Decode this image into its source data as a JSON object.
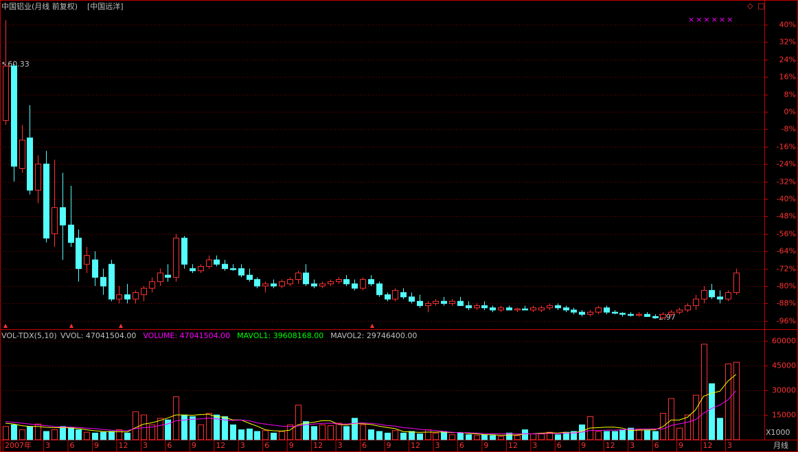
{
  "header": {
    "title": "中国铝业(月线 前复权)",
    "overlay": "[中国远洋]",
    "markers_text": "××××××",
    "corner_icons": [
      "◇",
      "□"
    ],
    "period": "月线"
  },
  "chart_data": [
    {
      "type": "candlestick",
      "up_color": "#ff3232",
      "down_color": "#54fcfc",
      "categories": [
        "2007年",
        null,
        null,
        null,
        null,
        "3",
        null,
        null,
        "6",
        null,
        null,
        "9",
        null,
        null,
        "12",
        null,
        null,
        "3",
        null,
        null,
        "6",
        null,
        null,
        "9",
        null,
        null,
        "12",
        null,
        null,
        "3",
        null,
        null,
        "6",
        null,
        null,
        "9",
        null,
        null,
        "12",
        null,
        null,
        "3",
        null,
        null,
        "6",
        null,
        null,
        "9",
        null,
        null,
        "12",
        null,
        null,
        "3",
        null,
        null,
        "6",
        null,
        null,
        "9",
        null,
        null,
        "12",
        null,
        null,
        "3",
        null,
        null,
        "6",
        null,
        null,
        "9",
        null,
        null,
        "12",
        null,
        null,
        "3",
        null,
        null,
        "6",
        null,
        null,
        "9",
        null,
        null,
        "12",
        null,
        null,
        "3",
        null
      ],
      "open": [
        -4,
        21,
        -26,
        -12,
        -36,
        -24,
        -56,
        -44,
        -52,
        -58,
        -70,
        -68,
        -76,
        -70,
        -86,
        -84,
        -86,
        -84,
        -81,
        -78,
        -75,
        -76,
        -58,
        -72,
        -73,
        -71,
        -68,
        -70,
        -72,
        -72,
        -75,
        -77,
        -80,
        -79,
        -80,
        -79,
        -77,
        -74,
        -79,
        -80,
        -79,
        -78,
        -77,
        -79,
        -81,
        -77,
        -79,
        -84,
        -86,
        -83,
        -85,
        -87,
        -89,
        -88,
        -87,
        -88,
        -87,
        -89,
        -90,
        -89,
        -90,
        -91,
        -90,
        -91,
        -90.5,
        -91,
        -91,
        -90,
        -89,
        -90,
        -91,
        -92,
        -93,
        -92,
        -90,
        -92,
        -92.5,
        -93,
        -93.5,
        -93,
        -94,
        -94.6,
        -93,
        -92,
        -91,
        -89,
        -86,
        -82,
        -85,
        -86,
        -83
      ],
      "high": [
        42,
        22,
        -6,
        3,
        -20,
        -18,
        -22,
        -28,
        -34,
        -54,
        -62,
        -64,
        -72,
        -68,
        -80,
        -79,
        -82,
        -80,
        -76,
        -72,
        -70,
        -56,
        -57,
        -70,
        -70,
        -66,
        -66,
        -68,
        -70,
        -70,
        -72,
        -76,
        -78,
        -77,
        -77,
        -76,
        -73,
        -70,
        -77,
        -78,
        -77,
        -76,
        -75,
        -77,
        -76,
        -75,
        -78,
        -83,
        -81,
        -81,
        -83,
        -84,
        -87,
        -86,
        -85,
        -86,
        -85,
        -87,
        -88,
        -87,
        -89,
        -89,
        -89,
        -90,
        -89,
        -89,
        -89,
        -88,
        -88,
        -89,
        -90,
        -91,
        -91,
        -89,
        -89,
        -91,
        -92,
        -92,
        -92,
        -92,
        -93,
        -92,
        -91,
        -90,
        -88,
        -84,
        -80,
        -79,
        -82,
        -82,
        -72
      ],
      "low": [
        -6,
        -32,
        -28,
        -38,
        -42,
        -60,
        -62,
        -68,
        -62,
        -78,
        -74,
        -80,
        -84,
        -87,
        -88,
        -88,
        -88,
        -87,
        -83,
        -80,
        -78,
        -78,
        -72,
        -74,
        -74,
        -72,
        -71,
        -73,
        -73,
        -76,
        -78,
        -81,
        -83,
        -81,
        -81,
        -80,
        -79,
        -80,
        -81,
        -81,
        -80,
        -79,
        -80,
        -82,
        -82,
        -80,
        -85,
        -87,
        -87,
        -86,
        -88,
        -90,
        -92,
        -89,
        -89,
        -89,
        -89,
        -91,
        -91,
        -91,
        -92,
        -92,
        -91,
        -92,
        -91,
        -92,
        -92,
        -91,
        -91,
        -92,
        -93,
        -94,
        -94,
        -93,
        -93,
        -93,
        -94,
        -94,
        -94,
        -94,
        -95,
        -95,
        -94,
        -93,
        -92,
        -91,
        -88,
        -86,
        -88,
        -87,
        -84
      ],
      "close": [
        21,
        -25,
        -13,
        -36,
        -24,
        -58,
        -44,
        -52,
        -60,
        -72,
        -66,
        -76,
        -80,
        -86,
        -84,
        -86,
        -83,
        -81,
        -78,
        -74,
        -76,
        -58,
        -70,
        -73,
        -71,
        -68,
        -70,
        -72,
        -72.5,
        -75,
        -77,
        -80,
        -79,
        -80,
        -78,
        -77,
        -74,
        -79,
        -80,
        -79,
        -78,
        -77,
        -79,
        -81,
        -77,
        -79,
        -84,
        -86,
        -82,
        -85,
        -87,
        -89,
        -88,
        -87,
        -88,
        -87,
        -89,
        -90,
        -89,
        -90,
        -91,
        -90,
        -91,
        -90.5,
        -91,
        -90,
        -90,
        -89,
        -90,
        -91,
        -92,
        -93,
        -92,
        -90,
        -92,
        -92.5,
        -93,
        -93.5,
        -93,
        -94,
        -94.6,
        -93,
        -92,
        -91,
        -89,
        -86,
        -82,
        -85,
        -86,
        -83,
        -74
      ],
      "annotations": [
        {
          "text": "↖60.33"
        },
        {
          "text": "←2.97"
        }
      ],
      "ylim": [
        -99.2,
        45
      ],
      "yticks": [
        {
          "value": 40,
          "label": "40%"
        },
        {
          "value": 32,
          "label": "32%"
        },
        {
          "value": 24,
          "label": "24%"
        },
        {
          "value": 16,
          "label": "16%"
        },
        {
          "value": 8,
          "label": "8%"
        },
        {
          "value": 0,
          "label": "0%"
        },
        {
          "value": -8,
          "label": "-8%"
        },
        {
          "value": -16,
          "label": "-16%"
        },
        {
          "value": -24,
          "label": "-24%"
        },
        {
          "value": -32,
          "label": "-32%"
        },
        {
          "value": -40,
          "label": "-40%"
        },
        {
          "value": -48,
          "label": "-48%"
        },
        {
          "value": -56,
          "label": "-56%"
        },
        {
          "value": -64,
          "label": "-64%"
        },
        {
          "value": -72,
          "label": "-72%"
        },
        {
          "value": -80,
          "label": "-80%"
        },
        {
          "value": -88,
          "label": "-88%"
        },
        {
          "value": -96,
          "label": "-96%"
        }
      ],
      "grid": true
    },
    {
      "type": "bar",
      "indicator": "VOL-TDX(5,10)",
      "readouts": [
        {
          "text": "VVOL: 47041504.00",
          "color": "#c0c0c0"
        },
        {
          "text": "VOLUME: 47041504.00",
          "color": "#ff00ff"
        },
        {
          "text": "MAVOL1: 39608168.00",
          "color": "#00ff00"
        },
        {
          "text": "MAVOL2: 29746400.00",
          "color": "#c0c0c0"
        }
      ],
      "unit_label": "X1000",
      "series": [
        {
          "values": [
            8000,
            9000,
            6000,
            8000,
            9500,
            5000,
            6000,
            8000,
            7500,
            6000,
            4500,
            4000,
            4500,
            5000,
            6000,
            4000,
            17000,
            15000,
            9000,
            13000,
            12000,
            26000,
            15000,
            14000,
            9000,
            16000,
            15000,
            14000,
            9000,
            6000,
            6500,
            5000,
            5500,
            4000,
            5000,
            9000,
            21000,
            11000,
            8000,
            9000,
            8500,
            10000,
            8000,
            13000,
            9000,
            6000,
            5000,
            4000,
            5500,
            4000,
            5000,
            3500,
            6000,
            4000,
            5000,
            3000,
            4000,
            3000,
            2500,
            3000,
            2500,
            2000,
            4000,
            2500,
            6000,
            3500,
            3500,
            4500,
            3000,
            4500,
            5000,
            9000,
            14000,
            5000,
            5000,
            5000,
            6000,
            7000,
            6000,
            5500,
            5000,
            16000,
            25000,
            7000,
            15000,
            27000,
            58000,
            34000,
            13000,
            46000,
            47041.504
          ]
        },
        {
          "color": "#ffff00",
          "values": [
            10000,
            9500,
            8500,
            8000,
            8000,
            7500,
            7300,
            7300,
            7200,
            6700,
            6000,
            5400,
            5000,
            4800,
            4800,
            4700,
            7200,
            9400,
            10200,
            11600,
            13200,
            15000,
            15000,
            14800,
            15200,
            15400,
            14000,
            13600,
            12000,
            12000,
            10000,
            8200,
            6000,
            5400,
            5200,
            5700,
            8900,
            10100,
            10600,
            11600,
            11500,
            9300,
            8900,
            9700,
            9700,
            9200,
            8200,
            7400,
            6700,
            4900,
            4700,
            4400,
            4600,
            4600,
            4700,
            4300,
            4400,
            3800,
            3500,
            3100,
            3000,
            2600,
            2800,
            2800,
            3400,
            3600,
            3900,
            4200,
            4000,
            4400,
            4100,
            5200,
            7100,
            7300,
            7600,
            7600,
            7000,
            5600,
            5800,
            5900,
            5900,
            7900,
            11900,
            11900,
            13600,
            18000,
            26400,
            28200,
            29400,
            35600,
            39608.168
          ]
        },
        {
          "color": "#ff00ff",
          "values": [
            11000,
            10500,
            10000,
            9500,
            9000,
            8500,
            8000,
            7700,
            7600,
            7400,
            7000,
            6700,
            6200,
            5800,
            5600,
            5500,
            6700,
            7300,
            7600,
            8600,
            9600,
            11500,
            11900,
            12400,
            12600,
            13100,
            12600,
            12000,
            11700,
            11900,
            11500,
            10200,
            9500,
            8800,
            8200,
            8000,
            8300,
            9100,
            9500,
            9900,
            10000,
            9600,
            9500,
            9900,
            10200,
            9900,
            9400,
            8600,
            8200,
            7300,
            6900,
            6300,
            5900,
            5600,
            5000,
            4500,
            4300,
            4200,
            4000,
            3700,
            3600,
            3500,
            3600,
            3400,
            3600,
            3500,
            3600,
            3800,
            3700,
            4100,
            4100,
            4600,
            5600,
            5600,
            5700,
            5800,
            6000,
            6300,
            6400,
            6500,
            6600,
            6500,
            8600,
            9600,
            10600,
            12100,
            16100,
            19000,
            21000,
            24200,
            29746.4
          ]
        }
      ],
      "ylim": [
        0,
        66250
      ],
      "yticks": [
        60000,
        45000,
        30000,
        15000
      ],
      "grid": true
    }
  ]
}
